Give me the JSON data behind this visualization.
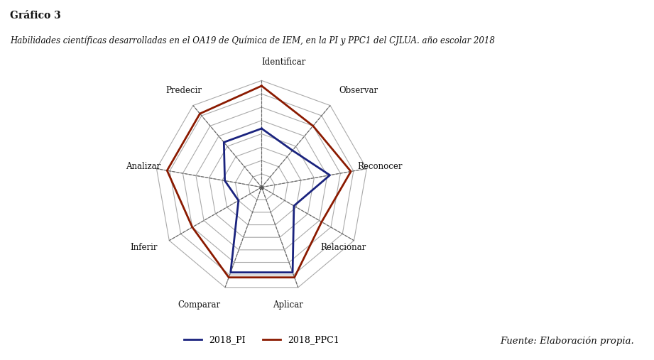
{
  "title_main": "Gráfico 3",
  "title_sub": "Habilidades científicas desarrolladas en el OA19 de Química de IEM, en la PI y PPC1 del CJLUA. año escolar 2018",
  "categories": [
    "Identificar",
    "Observar",
    "Reconocer",
    "Relacionar",
    "Aplicar",
    "Comparar",
    "Inferir",
    "Analizar",
    "Predecir"
  ],
  "series_PI": [
    5.5,
    4.5,
    6.5,
    3.5,
    8.5,
    8.5,
    2.5,
    3.5,
    5.5
  ],
  "series_PPC1": [
    9.5,
    7.5,
    8.5,
    6.5,
    9.0,
    9.0,
    7.5,
    9.0,
    9.0
  ],
  "color_PI": "#1a237e",
  "color_PPC1": "#8b1a00",
  "n_rings": 8,
  "max_value": 10,
  "grid_color": "#aaaaaa",
  "dashed_color": "#666666",
  "bg_color": "#ffffff",
  "label_fontsize": 8.5,
  "title_main_fontsize": 10,
  "title_sub_fontsize": 8.5,
  "legend_fontsize": 9,
  "footer_text": "Fuente: Elaboración propia.",
  "footer_fontsize": 9.5,
  "label_PI": "2018_PI",
  "label_PPC1": "2018_PPC1"
}
